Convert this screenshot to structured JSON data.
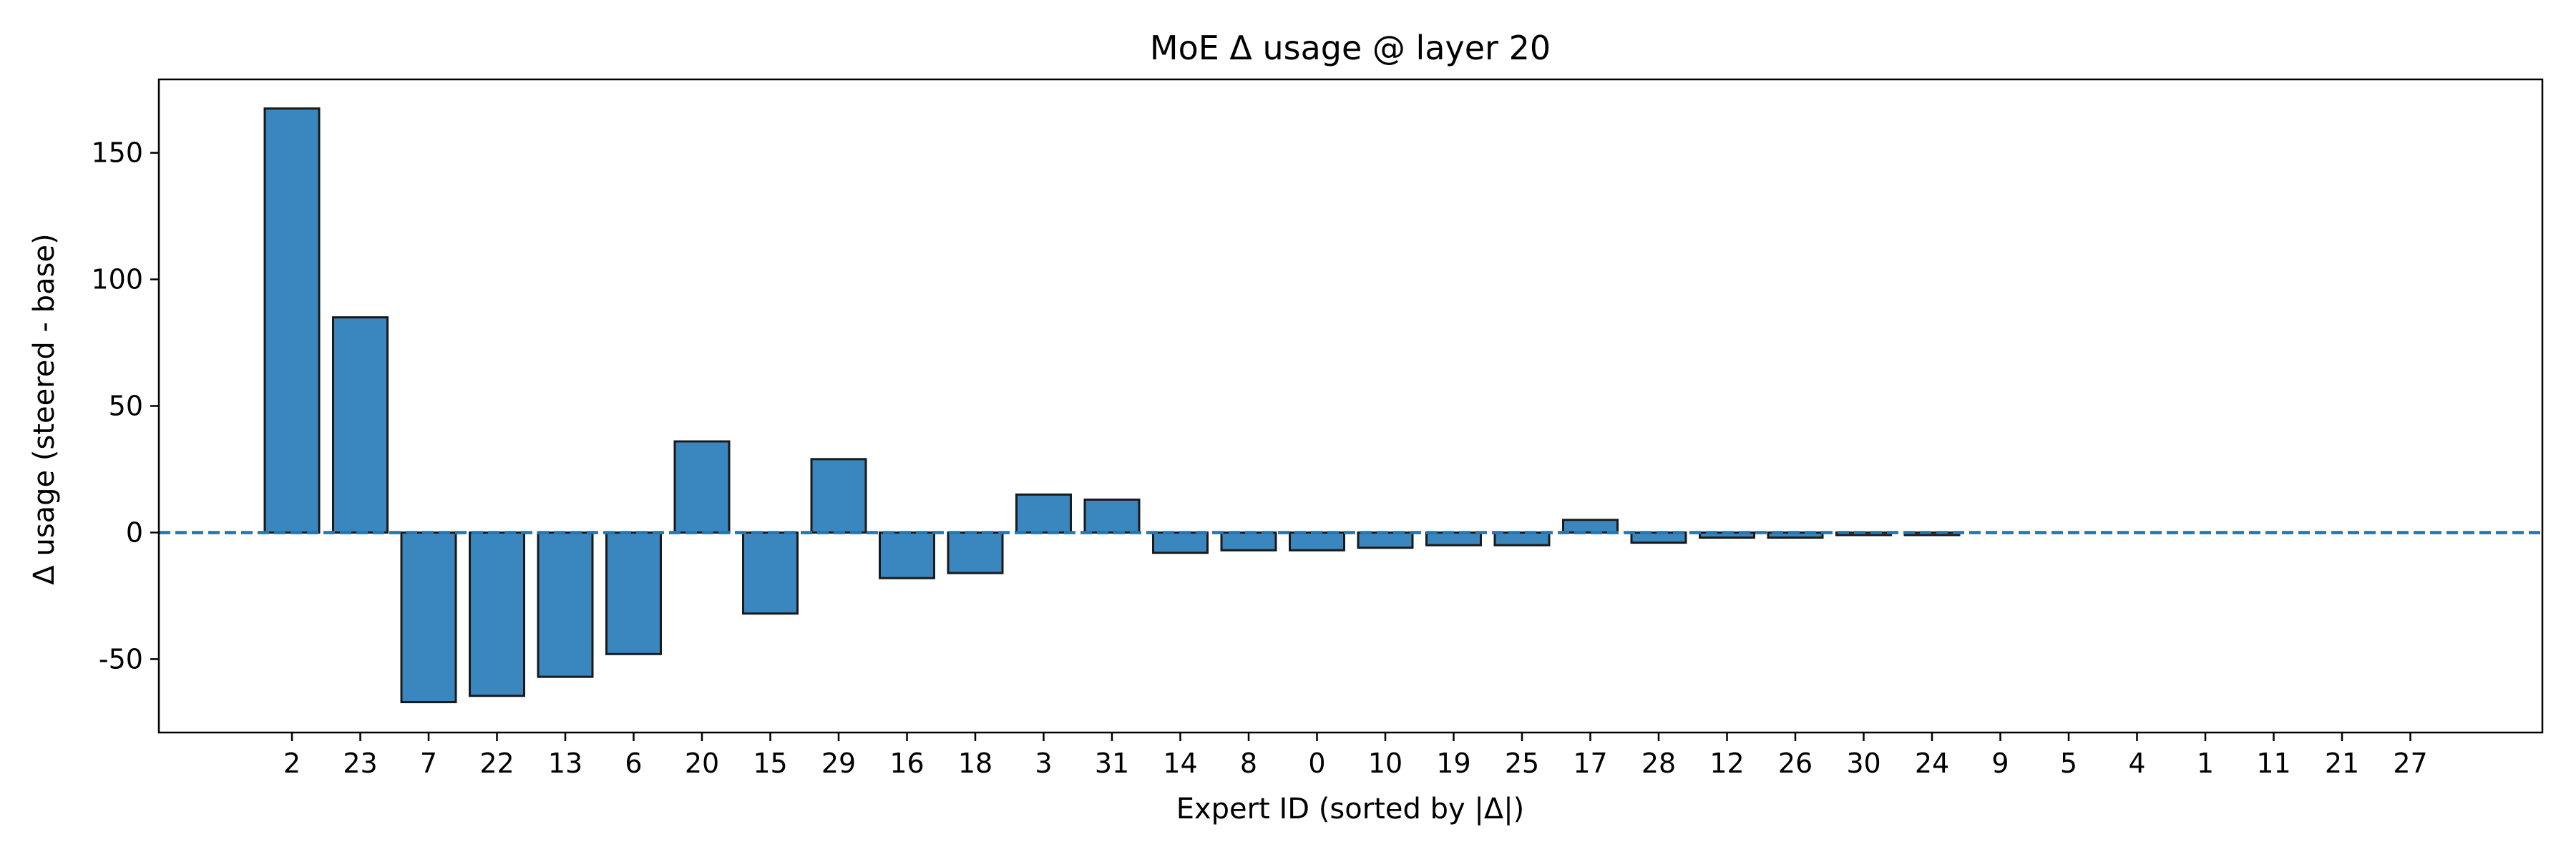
{
  "chart_data": {
    "type": "bar",
    "title": "MoE Δ usage @ layer 20",
    "xlabel": "Expert ID (sorted by |Δ|)",
    "ylabel": "Δ usage (steered - base)",
    "ylim": [
      -79,
      179
    ],
    "yticks": [
      -50,
      0,
      50,
      100,
      150
    ],
    "categories": [
      "2",
      "23",
      "7",
      "22",
      "13",
      "6",
      "20",
      "15",
      "29",
      "16",
      "18",
      "3",
      "31",
      "14",
      "8",
      "0",
      "10",
      "19",
      "25",
      "17",
      "28",
      "12",
      "26",
      "30",
      "24",
      "9",
      "5",
      "4",
      "1",
      "11",
      "21",
      "27"
    ],
    "values": [
      167.5,
      85,
      -67,
      -64.5,
      -57,
      -48,
      36,
      -32,
      29,
      -18,
      -16,
      15,
      13,
      -8,
      -7,
      -7,
      -6,
      -5,
      -5,
      5,
      -4,
      -2,
      -2,
      -1,
      -1,
      0,
      0,
      0,
      0,
      0,
      0,
      0
    ],
    "bar_color": "#3a87bf",
    "bar_edge_color": "#1a1a1a",
    "zero_line_color": "#1f77b4",
    "zero_line_style": "dashed",
    "grid": false,
    "legend": "none"
  }
}
